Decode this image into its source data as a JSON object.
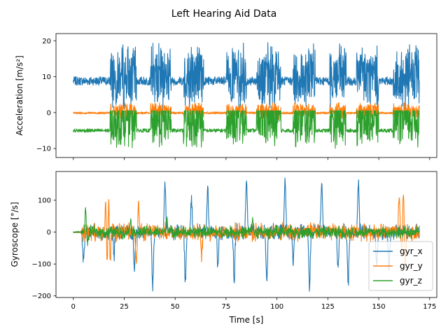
{
  "chart_data": [
    {
      "type": "line",
      "title": "Left Hearing Aid Data",
      "ylabel": "Acceleration [m/s²]",
      "ylim": [
        -12.5,
        22
      ],
      "xlim": [
        -8.5,
        178.5
      ],
      "x_ticks": [
        0,
        25,
        50,
        75,
        100,
        125,
        150,
        175
      ],
      "y_ticks": [
        -10,
        0,
        10,
        20
      ],
      "y_tick_labels": [
        "−10",
        "0",
        "10",
        "20"
      ],
      "x_tick_labels_visible": false,
      "colors": [
        "#1f77b4",
        "#ff7f0e",
        "#2ca02c"
      ],
      "x_range": [
        0,
        170
      ],
      "walk_bouts": [
        [
          18,
          31
        ],
        [
          38,
          48
        ],
        [
          54,
          64
        ],
        [
          75,
          85
        ],
        [
          90,
          102
        ],
        [
          108,
          119
        ],
        [
          126,
          134
        ],
        [
          139,
          150
        ],
        [
          157,
          170
        ]
      ],
      "series": [
        {
          "baseline": 8.8,
          "rest_noise": 1.2,
          "walk_envelope": [
            1.0,
            20.0
          ],
          "active_baseline": 10.0
        },
        {
          "baseline": -0.1,
          "rest_noise": 0.3,
          "walk_envelope": [
            -2.0,
            3.0
          ],
          "active_baseline": 0.5
        },
        {
          "baseline": -5.0,
          "rest_noise": 0.5,
          "walk_envelope": [
            -10.5,
            0.5
          ],
          "active_baseline": -2.0
        }
      ]
    },
    {
      "type": "line",
      "xlabel": "Time [s]",
      "ylabel": "Gyroscope [°/s]",
      "ylim": [
        -205,
        190
      ],
      "xlim": [
        -8.5,
        178.5
      ],
      "x_ticks": [
        0,
        25,
        50,
        75,
        100,
        125,
        150,
        175
      ],
      "x_tick_labels": [
        "0",
        "25",
        "50",
        "75",
        "100",
        "125",
        "150",
        "175"
      ],
      "y_ticks": [
        -200,
        -100,
        0,
        100
      ],
      "y_tick_labels": [
        "−200",
        "−100",
        "0",
        "100"
      ],
      "legend": {
        "placement": "lower-right",
        "entries": [
          "gyr_x",
          "gyr_y",
          "gyr_z"
        ]
      },
      "colors": [
        "#1f77b4",
        "#ff7f0e",
        "#2ca02c"
      ],
      "x_range": [
        0,
        170
      ],
      "spikes": [
        {
          "series": 0,
          "x": 5,
          "value": -85
        },
        {
          "series": 0,
          "x": 20,
          "value": -80
        },
        {
          "series": 0,
          "x": 30,
          "value": -120
        },
        {
          "series": 0,
          "x": 39,
          "value": -180
        },
        {
          "series": 0,
          "x": 45,
          "value": 155
        },
        {
          "series": 0,
          "x": 55,
          "value": -150
        },
        {
          "series": 0,
          "x": 58,
          "value": 110
        },
        {
          "series": 0,
          "x": 66,
          "value": 140
        },
        {
          "series": 0,
          "x": 71,
          "value": -110
        },
        {
          "series": 0,
          "x": 79,
          "value": -160
        },
        {
          "series": 0,
          "x": 85,
          "value": 165
        },
        {
          "series": 0,
          "x": 95,
          "value": -150
        },
        {
          "series": 0,
          "x": 104,
          "value": 165
        },
        {
          "series": 0,
          "x": 108,
          "value": -100
        },
        {
          "series": 0,
          "x": 116,
          "value": -180
        },
        {
          "series": 0,
          "x": 122,
          "value": 155
        },
        {
          "series": 0,
          "x": 130,
          "value": -110
        },
        {
          "series": 0,
          "x": 135,
          "value": -160
        },
        {
          "series": 0,
          "x": 140,
          "value": 155
        },
        {
          "series": 0,
          "x": 149,
          "value": -105
        },
        {
          "series": 0,
          "x": 155,
          "value": -120
        },
        {
          "series": 1,
          "x": 16,
          "value": 130
        },
        {
          "series": 1,
          "x": 16.5,
          "value": -135
        },
        {
          "series": 1,
          "x": 17.5,
          "value": 135
        },
        {
          "series": 1,
          "x": 18,
          "value": -140
        },
        {
          "series": 1,
          "x": 31,
          "value": -95
        },
        {
          "series": 1,
          "x": 32,
          "value": 85
        },
        {
          "series": 1,
          "x": 63,
          "value": -75
        },
        {
          "series": 1,
          "x": 160,
          "value": 110
        },
        {
          "series": 1,
          "x": 161.5,
          "value": -115
        },
        {
          "series": 1,
          "x": 162,
          "value": 160
        },
        {
          "series": 1,
          "x": 163,
          "value": -120
        },
        {
          "series": 2,
          "x": 6,
          "value": 70
        },
        {
          "series": 2,
          "x": 7,
          "value": -40
        },
        {
          "series": 2,
          "x": 28,
          "value": 45
        },
        {
          "series": 2,
          "x": 46,
          "value": 45
        },
        {
          "series": 2,
          "x": 88,
          "value": 40
        }
      ],
      "noise": [
        22,
        25,
        18
      ]
    }
  ]
}
